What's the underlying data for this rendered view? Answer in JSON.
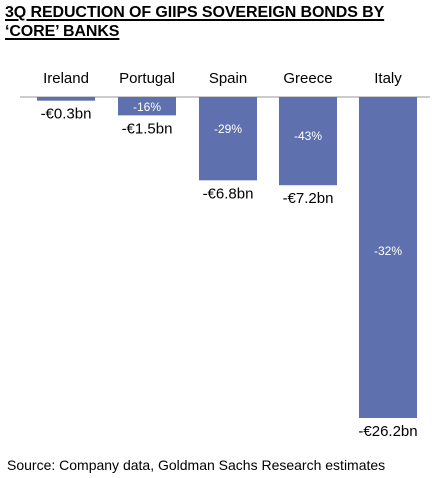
{
  "title": "3Q REDUCTION OF GIIPS SOVEREIGN BONDS BY ‘CORE’ BANKS",
  "source": "Source: Company data, Goldman Sachs Research estimates",
  "colors": {
    "bar": "#5f70ae",
    "axis": "#9a9a9a"
  },
  "chart_data": {
    "type": "bar",
    "title": "3Q REDUCTION OF GIIPS SOVEREIGN BONDS BY ‘CORE’ BANKS",
    "categories": [
      "Ireland",
      "Portugal",
      "Spain",
      "Greece",
      "Italy"
    ],
    "series": [
      {
        "values": [
          -0.3,
          -1.5,
          -6.8,
          -7.2,
          -26.2
        ],
        "labels": [
          "-€0.3bn",
          "-€1.5bn",
          "-€6.8bn",
          "-€7.2bn",
          "-€26.2bn"
        ]
      }
    ],
    "percent_labels": [
      "",
      "-16%",
      "-29%",
      "-43%",
      "-32%"
    ],
    "unit": "€bn",
    "ylim": [
      -26.2,
      0
    ],
    "grid": false,
    "legend": "none"
  }
}
